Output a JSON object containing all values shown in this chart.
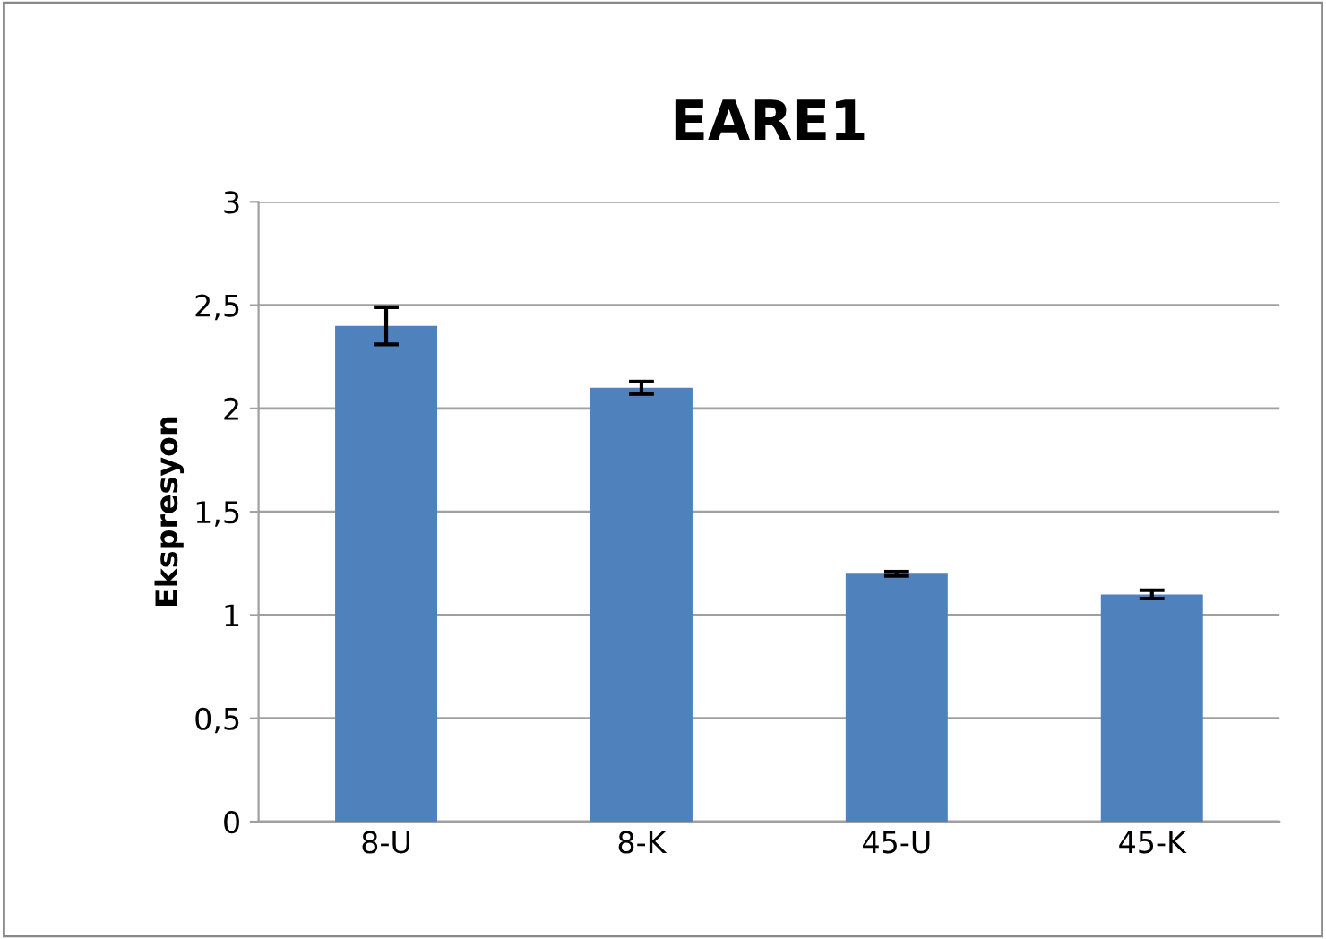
{
  "chart_data": {
    "type": "bar",
    "title": "EARE1",
    "ylabel": "Ekspresyon",
    "categories": [
      "8-U",
      "8-K",
      "45-U",
      "45-K"
    ],
    "values": [
      2.4,
      2.1,
      1.2,
      1.1
    ],
    "errors": [
      0.09,
      0.03,
      0.01,
      0.02
    ],
    "color": "#4f81bd",
    "ylim": [
      0,
      3
    ],
    "yticks": [
      0,
      {
        "value": 0.5,
        "label": "0,5"
      },
      1,
      {
        "value": 1.5,
        "label": "1,5"
      },
      2,
      {
        "value": 2.5,
        "label": "2,5"
      },
      3
    ],
    "grid": "y"
  }
}
